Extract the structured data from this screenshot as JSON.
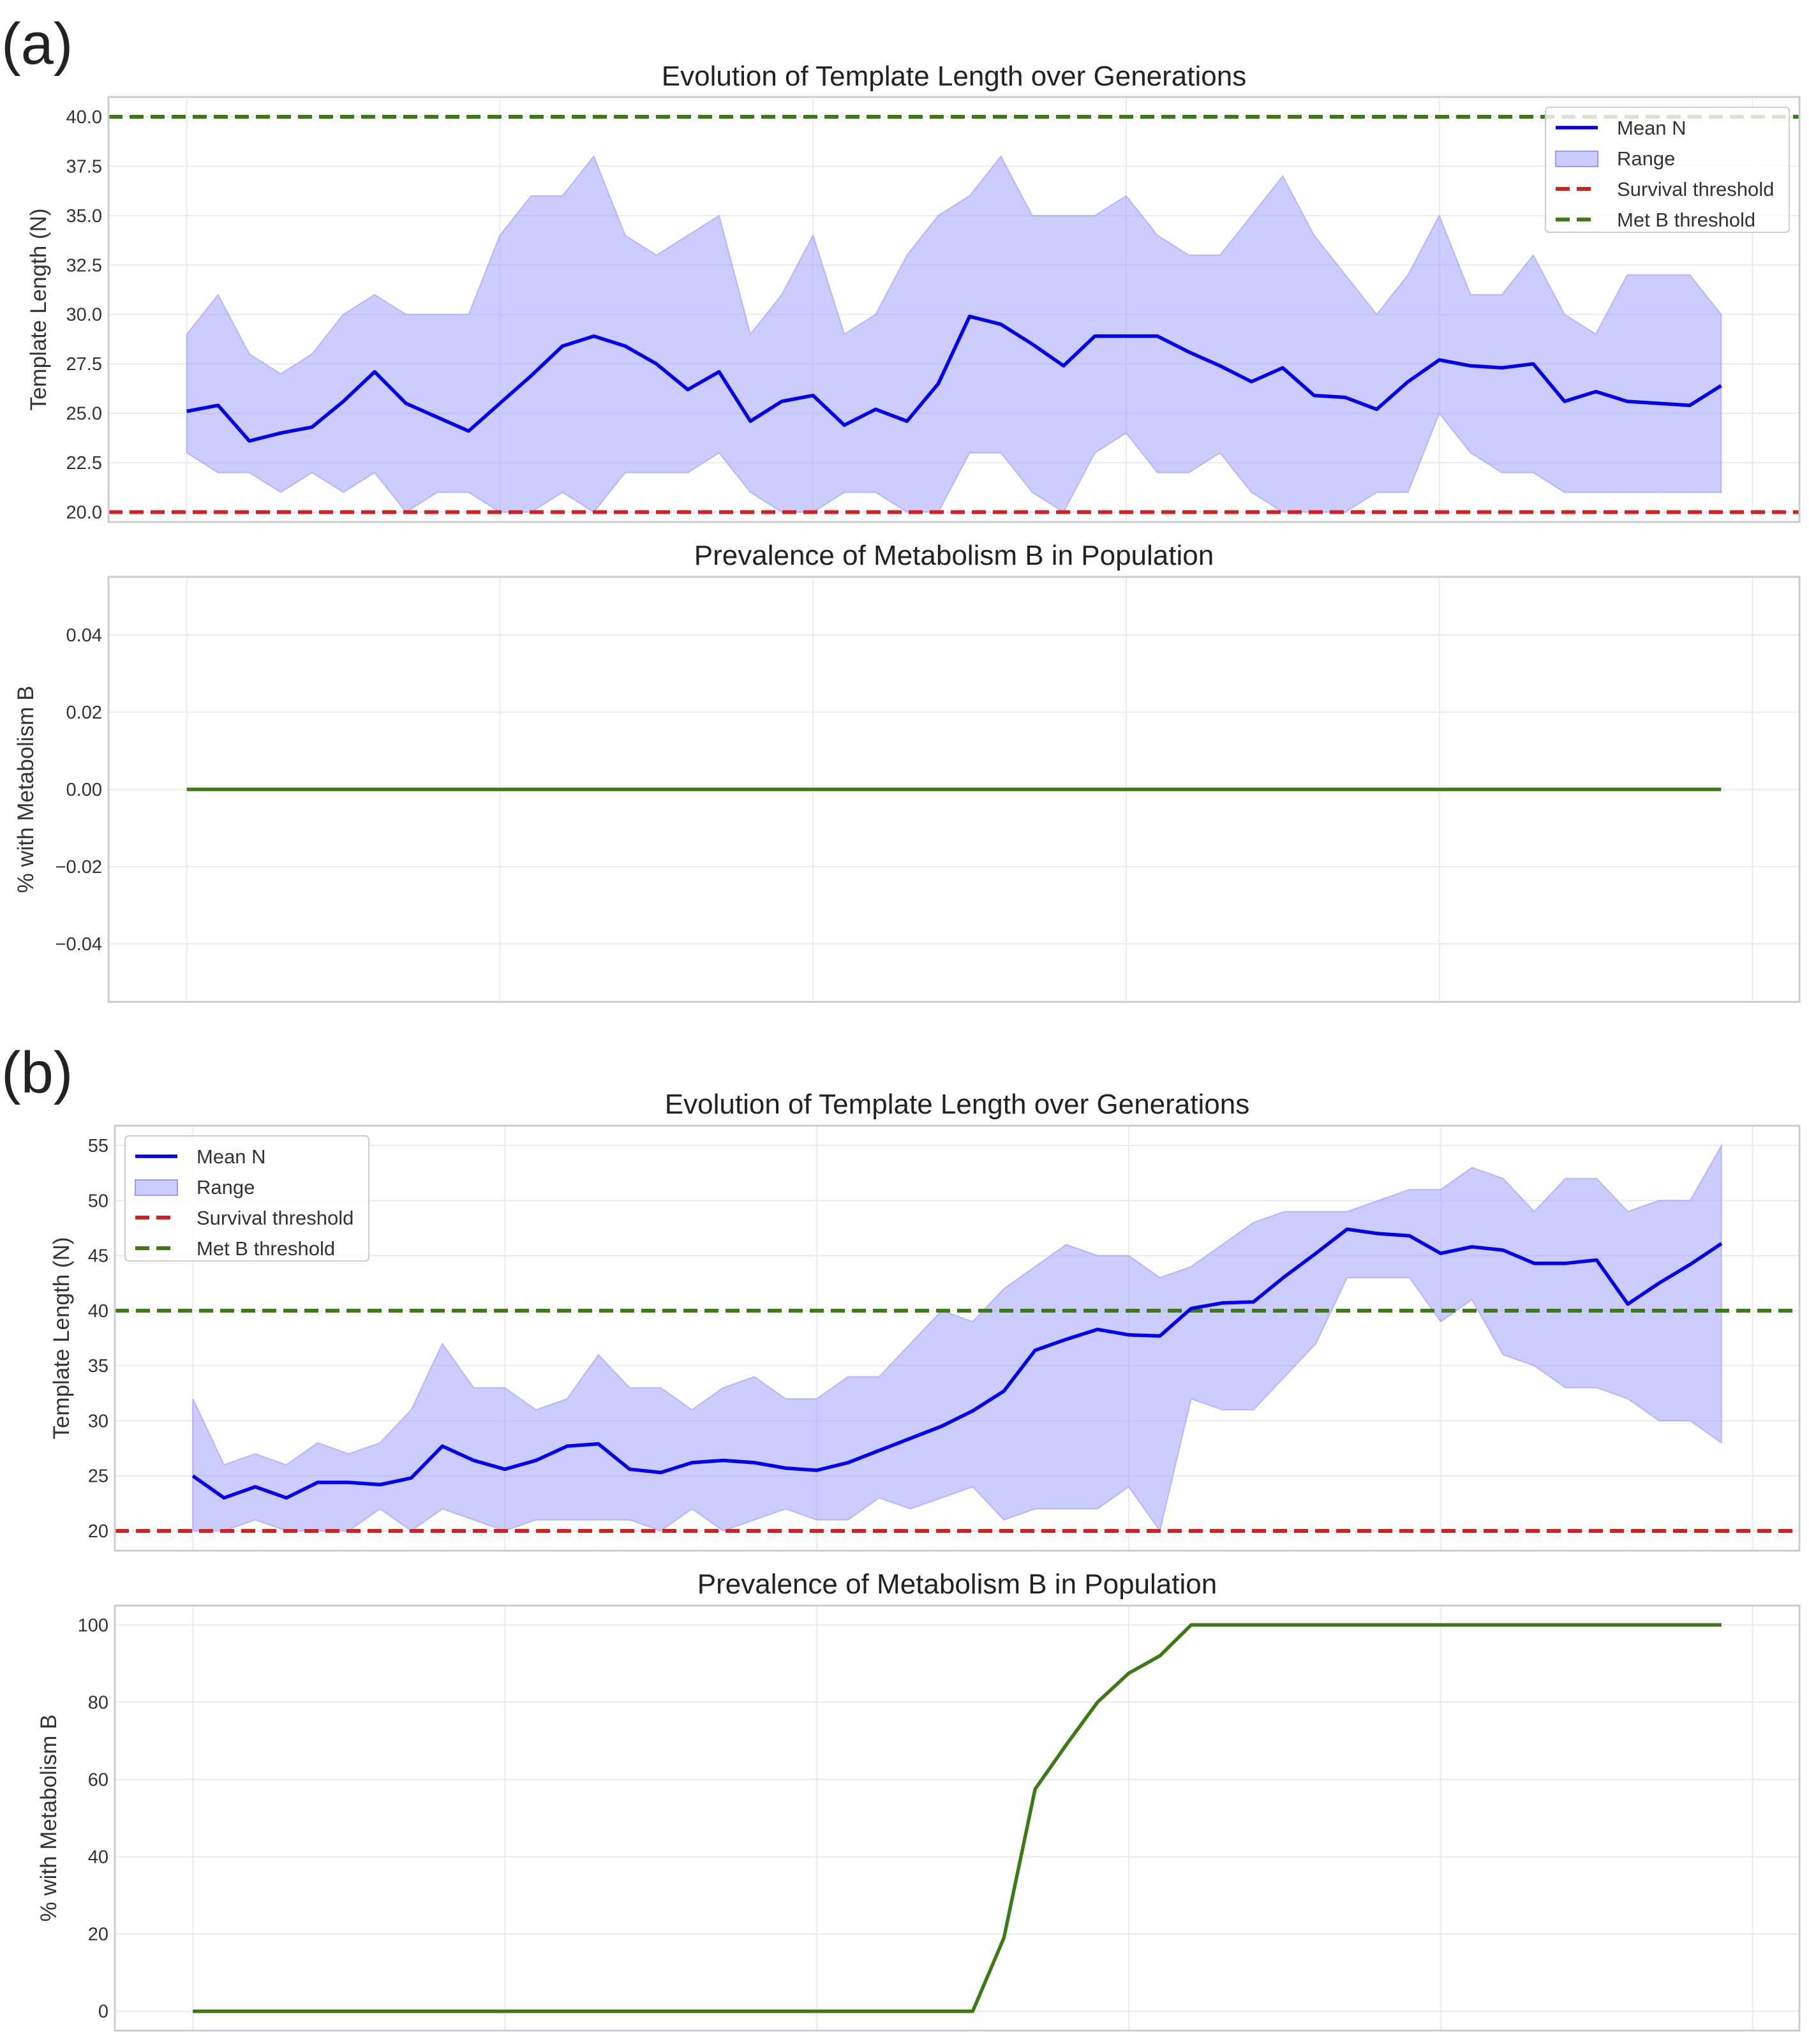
{
  "panels": [
    {
      "label": "(a)",
      "chart_data": [
        {
          "type": "line",
          "title": "Evolution of Template Length over Generations",
          "xlabel": "",
          "ylabel": "Template Length (N)",
          "xlim": [
            -2.5,
            51.5
          ],
          "ylim": [
            19.5,
            41.0
          ],
          "yticks": [
            20.0,
            22.5,
            25.0,
            27.5,
            30.0,
            32.5,
            35.0,
            37.5,
            40.0
          ],
          "ytick_labels": [
            "20.0",
            "22.5",
            "25.0",
            "27.5",
            "30.0",
            "32.5",
            "35.0",
            "37.5",
            "40.0"
          ],
          "x": [
            0,
            1,
            2,
            3,
            4,
            5,
            6,
            7,
            8,
            9,
            10,
            11,
            12,
            13,
            14,
            15,
            16,
            17,
            18,
            19,
            20,
            21,
            22,
            23,
            24,
            25,
            26,
            27,
            28,
            29,
            30,
            31,
            32,
            33,
            34,
            35,
            36,
            37,
            38,
            39,
            40,
            41,
            42,
            43,
            44,
            45,
            46,
            47,
            48,
            49
          ],
          "series": [
            {
              "name": "Mean N",
              "kind": "line",
              "color": "#0000ee",
              "values": [
                25.1,
                25.4,
                23.6,
                24.0,
                24.3,
                25.6,
                27.1,
                25.5,
                24.8,
                24.1,
                25.5,
                26.9,
                28.4,
                28.9,
                28.4,
                27.5,
                26.2,
                27.1,
                24.6,
                25.6,
                25.9,
                24.4,
                25.2,
                24.6,
                26.5,
                29.9,
                29.5,
                28.5,
                27.4,
                28.9,
                28.9,
                28.9,
                28.1,
                27.4,
                26.6,
                27.3,
                25.9,
                25.8,
                25.2,
                26.6,
                27.7,
                27.4,
                27.3,
                27.5,
                25.6,
                26.1,
                25.6,
                25.5,
                25.4,
                26.4
              ]
            },
            {
              "name": "Range",
              "kind": "band",
              "color": "#9999ff",
              "lower": [
                23,
                22,
                22,
                21,
                22,
                21,
                22,
                20,
                21,
                21,
                20,
                20,
                21,
                20,
                22,
                22,
                22,
                23,
                21,
                20,
                20,
                21,
                21,
                20,
                20,
                23,
                23,
                21,
                20,
                23,
                24,
                22,
                22,
                23,
                21,
                20,
                20,
                20,
                21,
                21,
                25,
                23,
                22,
                22,
                21,
                21,
                21,
                21,
                21,
                21
              ],
              "upper": [
                29,
                31,
                28,
                27,
                28,
                30,
                31,
                30,
                30,
                30,
                34,
                36,
                36,
                38,
                34,
                33,
                34,
                35,
                29,
                31,
                34,
                29,
                30,
                33,
                35,
                36,
                38,
                35,
                35,
                35,
                36,
                34,
                33,
                33,
                35,
                37,
                34,
                32,
                30,
                32,
                35,
                31,
                31,
                33,
                30,
                29,
                32,
                32,
                32,
                30
              ]
            },
            {
              "name": "Survival threshold",
              "kind": "hline",
              "y": 20,
              "color": "#d62020"
            },
            {
              "name": "Met B threshold",
              "kind": "hline",
              "y": 40,
              "color": "#3c7a14"
            }
          ],
          "legend": "top-right"
        },
        {
          "type": "line",
          "title": "Prevalence of Metabolism B in Population",
          "xlabel": "",
          "ylabel": "% with Metabolism B",
          "xlim": [
            -2.5,
            51.5
          ],
          "ylim": [
            -0.055,
            0.055
          ],
          "yticks": [
            -0.04,
            -0.02,
            0.0,
            0.02,
            0.04
          ],
          "ytick_labels": [
            "−0.04",
            "−0.02",
            "0.00",
            "0.02",
            "0.04"
          ],
          "x": [
            0,
            49
          ],
          "series": [
            {
              "name": "% with Metabolism B",
              "kind": "line",
              "color": "#3c7a14",
              "values": [
                0,
                0
              ]
            }
          ]
        }
      ]
    },
    {
      "label": "(b)",
      "chart_data": [
        {
          "type": "line",
          "title": "Evolution of Template Length over Generations",
          "xlabel": "",
          "ylabel": "Template Length (N)",
          "xlim": [
            -2.5,
            51.5
          ],
          "ylim": [
            18.2,
            56.8
          ],
          "yticks": [
            20,
            25,
            30,
            35,
            40,
            45,
            50,
            55
          ],
          "ytick_labels": [
            "20",
            "25",
            "30",
            "35",
            "40",
            "45",
            "50",
            "55"
          ],
          "x": [
            0,
            1,
            2,
            3,
            4,
            5,
            6,
            7,
            8,
            9,
            10,
            11,
            12,
            13,
            14,
            15,
            16,
            17,
            18,
            19,
            20,
            21,
            22,
            23,
            24,
            25,
            26,
            27,
            28,
            29,
            30,
            31,
            32,
            33,
            34,
            35,
            36,
            37,
            38,
            39,
            40,
            41,
            42,
            43,
            44,
            45,
            46,
            47,
            48,
            49
          ],
          "series": [
            {
              "name": "Mean N",
              "kind": "line",
              "color": "#0000ee",
              "values": [
                25.0,
                23.0,
                24.0,
                23.0,
                24.4,
                24.4,
                24.2,
                24.8,
                27.7,
                26.4,
                25.6,
                26.4,
                27.7,
                27.9,
                25.6,
                25.3,
                26.2,
                26.4,
                26.2,
                25.7,
                25.5,
                26.2,
                27.3,
                28.4,
                29.5,
                30.9,
                32.7,
                36.4,
                37.4,
                38.3,
                37.8,
                37.7,
                40.2,
                40.7,
                40.8,
                43.1,
                45.2,
                47.4,
                47.0,
                46.8,
                45.2,
                45.8,
                45.5,
                44.3,
                44.3,
                44.6,
                40.6,
                42.5,
                44.2,
                46.1
              ]
            },
            {
              "name": "Range",
              "kind": "band",
              "color": "#9999ff",
              "lower": [
                20,
                20,
                21,
                20,
                20,
                20,
                22,
                20,
                22,
                21,
                20,
                21,
                21,
                21,
                21,
                20,
                22,
                20,
                21,
                22,
                21,
                21,
                23,
                22,
                23,
                24,
                21,
                22,
                22,
                22,
                24,
                20,
                32,
                31,
                31,
                34,
                37,
                43,
                43,
                43,
                39,
                41,
                36,
                35,
                33,
                33,
                32,
                30,
                30,
                28
              ],
              "upper": [
                32,
                26,
                27,
                26,
                28,
                27,
                28,
                31,
                37,
                33,
                33,
                31,
                32,
                36,
                33,
                33,
                31,
                33,
                34,
                32,
                32,
                34,
                34,
                37,
                40,
                39,
                42,
                44,
                46,
                45,
                45,
                43,
                44,
                46,
                48,
                49,
                49,
                49,
                50,
                51,
                51,
                53,
                52,
                49,
                52,
                52,
                49,
                50,
                50,
                55
              ]
            },
            {
              "name": "Survival threshold",
              "kind": "hline",
              "y": 20,
              "color": "#d62020"
            },
            {
              "name": "Met B threshold",
              "kind": "hline",
              "y": 40,
              "color": "#3c7a14"
            }
          ],
          "legend": "top-left"
        },
        {
          "type": "line",
          "title": "Prevalence of Metabolism B in Population",
          "xlabel": "",
          "ylabel": "% with Metabolism B",
          "xlim": [
            -2.5,
            51.5
          ],
          "ylim": [
            -5.0,
            105.0
          ],
          "yticks": [
            0,
            20,
            40,
            60,
            80,
            100
          ],
          "ytick_labels": [
            "0",
            "20",
            "40",
            "60",
            "80",
            "100"
          ],
          "x": [
            0,
            1,
            2,
            3,
            4,
            5,
            6,
            7,
            8,
            9,
            10,
            11,
            12,
            13,
            14,
            15,
            16,
            17,
            18,
            19,
            20,
            21,
            22,
            23,
            24,
            25,
            26,
            27,
            28,
            29,
            30,
            31,
            32,
            33,
            34,
            35,
            36,
            37,
            38,
            39,
            40,
            41,
            42,
            43,
            44,
            45,
            46,
            47,
            48,
            49
          ],
          "series": [
            {
              "name": "% with Metabolism B",
              "kind": "line",
              "color": "#3c7a14",
              "values": [
                0,
                0,
                0,
                0,
                0,
                0,
                0,
                0,
                0,
                0,
                0,
                0,
                0,
                0,
                0,
                0,
                0,
                0,
                0,
                0,
                0,
                0,
                0,
                0,
                0,
                0,
                19,
                57.5,
                69,
                80,
                87.5,
                92,
                100,
                100,
                100,
                100,
                100,
                100,
                100,
                100,
                100,
                100,
                100,
                100,
                100,
                100,
                100,
                100,
                100,
                100
              ]
            }
          ]
        }
      ]
    }
  ],
  "style": {
    "grid_color": "#ebebeb",
    "frame_color": "#cccccc",
    "band_opacity": 0.5
  }
}
